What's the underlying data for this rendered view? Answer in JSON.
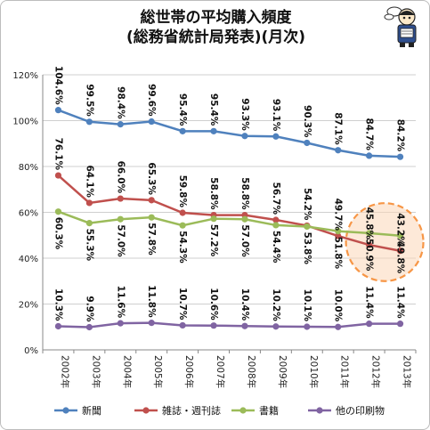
{
  "chart_data": {
    "type": "line",
    "title": "総世帯の平均購入頻度",
    "subtitle": "(総務省統計局発表)(月次)",
    "categories": [
      "2002年",
      "2003年",
      "2004年",
      "2005年",
      "2006年",
      "2007年",
      "2008年",
      "2009年",
      "2010年",
      "2011年",
      "2012年",
      "2013年"
    ],
    "ylim": [
      0,
      120
    ],
    "yticks": [
      "0%",
      "20%",
      "40%",
      "60%",
      "80%",
      "100%",
      "120%"
    ],
    "grid": true,
    "legend_position": "bottom",
    "series": [
      {
        "name": "新聞",
        "color": "#4f81bd",
        "values": [
          104.6,
          99.5,
          98.4,
          99.6,
          95.4,
          95.4,
          93.3,
          93.1,
          90.3,
          87.1,
          84.7,
          84.2
        ],
        "labels": [
          "104.6%",
          "99.5%",
          "98.4%",
          "99.6%",
          "95.4%",
          "95.4%",
          "93.3%",
          "93.1%",
          "90.3%",
          "87.1%",
          "84.7%",
          "84.2%"
        ]
      },
      {
        "name": "雑誌・週刊誌",
        "color": "#c0504d",
        "values": [
          76.1,
          64.1,
          66.0,
          65.3,
          59.8,
          58.8,
          58.8,
          56.7,
          54.2,
          49.7,
          45.8,
          43.2
        ],
        "labels": [
          "76.1%",
          "64.1%",
          "66.0%",
          "65.3%",
          "59.8%",
          "58.8%",
          "58.8%",
          "56.7%",
          "54.2%",
          "49.7%",
          "45.8%",
          "43.2%"
        ]
      },
      {
        "name": "書籍",
        "color": "#9bbb59",
        "values": [
          60.3,
          55.3,
          57.0,
          57.8,
          54.3,
          57.2,
          57.0,
          54.4,
          53.8,
          51.8,
          50.9,
          49.8
        ],
        "labels": [
          "60.3%",
          "55.3%",
          "57.0%",
          "57.8%",
          "54.3%",
          "57.2%",
          "57.0%",
          "54.4%",
          "53.8%",
          "51.8%",
          "50.9%",
          "49.8%"
        ]
      },
      {
        "name": "他の印刷物",
        "color": "#8064a2",
        "values": [
          10.3,
          9.9,
          11.6,
          11.8,
          10.7,
          10.6,
          10.4,
          10.2,
          10.1,
          10.0,
          11.4,
          11.4
        ],
        "labels": [
          "10.3%",
          "9.9%",
          "11.6%",
          "11.8%",
          "10.7%",
          "10.6%",
          "10.4%",
          "10.2%",
          "10.1%",
          "10.0%",
          "11.4%",
          "11.4%"
        ]
      }
    ],
    "highlight": {
      "shape": "dashed-ellipse",
      "color": "#f79646",
      "categories": [
        "2012年",
        "2013年"
      ]
    }
  }
}
